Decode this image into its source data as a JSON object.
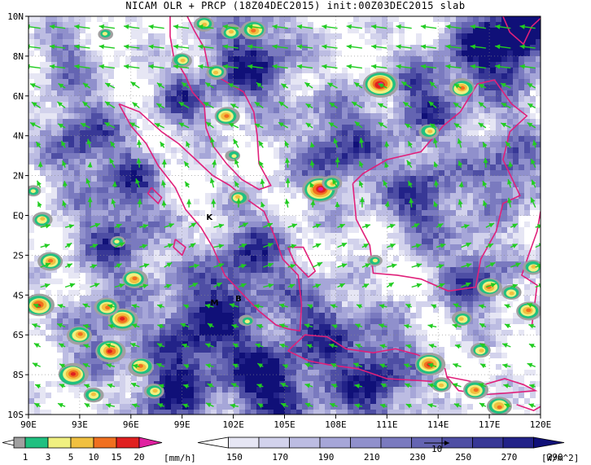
{
  "title": "NICAM OLR + PRCP (18Z04DEC2015) init:00Z03DEC2015 slab",
  "map": {
    "lon_range": [
      90,
      120
    ],
    "lat_range": [
      -10,
      10
    ],
    "lon_ticks": [
      "90E",
      "93E",
      "96E",
      "99E",
      "102E",
      "105E",
      "108E",
      "111E",
      "114E",
      "117E",
      "120E"
    ],
    "lat_ticks": [
      "10N",
      "8N",
      "6N",
      "4N",
      "2N",
      "EQ",
      "2S",
      "4S",
      "6S",
      "8S",
      "10S"
    ],
    "stations": [
      {
        "label": "K",
        "lon": 100.6,
        "lat": -0.1
      },
      {
        "label": "M",
        "lon": 100.9,
        "lat": -4.4
      },
      {
        "label": "B",
        "lon": 102.3,
        "lat": -4.2
      }
    ],
    "wind_vector_color": "#22cc22",
    "coastline_color": "#e0207a",
    "wind_reference_label": "10"
  },
  "precip_colorbar": {
    "labels": [
      "1",
      "3",
      "5",
      "10",
      "15",
      "20"
    ],
    "unit": "[mm/h]",
    "colors": [
      "#a0a0a0",
      "#20c080",
      "#f0f080",
      "#f0c040",
      "#f07020",
      "#e02020",
      "#e020a0"
    ]
  },
  "olr_colorbar": {
    "labels": [
      "150",
      "170",
      "190",
      "210",
      "230",
      "250",
      "270",
      "290"
    ],
    "unit": "[W/m^2]",
    "colors": [
      "#ffffff",
      "#e6e6f4",
      "#d2d2ec",
      "#bcbce2",
      "#a6a6d8",
      "#9090cc",
      "#7a7abf",
      "#6464b2",
      "#4e4ea4",
      "#383896",
      "#222288",
      "#101078"
    ]
  }
}
